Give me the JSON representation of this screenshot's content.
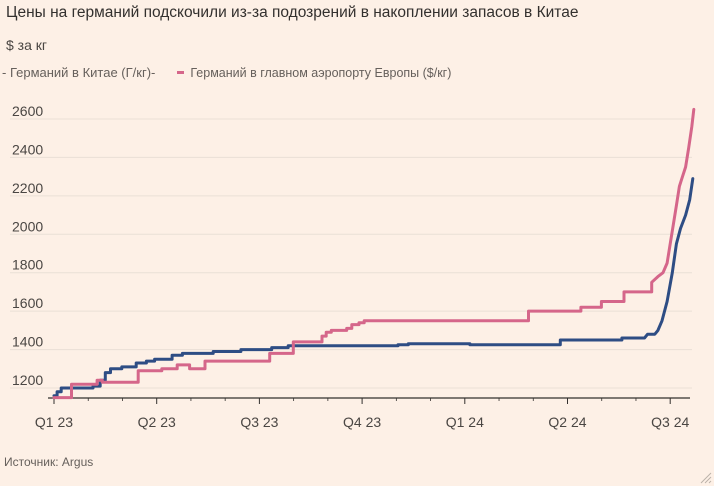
{
  "title": "Цены на германий подскочили из-за подозрений в накоплении запасов в Китае",
  "subtitle": "$ за кг",
  "legend": [
    {
      "label": "- Германий в Китае (Г/кг)-",
      "color": "#2e4d84"
    },
    {
      "label": "Германий в главном аэропорту Европы ($/кг)",
      "color": "#d5668a"
    }
  ],
  "source": "Источник: Argus",
  "colors": {
    "background": "#fdf0e6",
    "grid": "#eadfd6",
    "axis": "#33302e"
  },
  "chart_data": {
    "type": "line",
    "title": "Цены на германий подскочили из-за подозрений в накоплении запасов в Китае",
    "ylabel": "$ за кг",
    "xlabel": "",
    "ylim": [
      1150,
      2700
    ],
    "xlim": [
      0,
      6.3
    ],
    "yticks": [
      1200,
      1400,
      1600,
      1800,
      2000,
      2200,
      2400,
      2600
    ],
    "xticks": [
      {
        "label": "Q1 23",
        "x": 0
      },
      {
        "label": "Q2 23",
        "x": 1
      },
      {
        "label": "Q3 23",
        "x": 2
      },
      {
        "label": "Q4 23",
        "x": 3
      },
      {
        "label": "Q1 24",
        "x": 4
      },
      {
        "label": "Q2 24",
        "x": 5
      },
      {
        "label": "Q3 24",
        "x": 6
      }
    ],
    "series": [
      {
        "name": "- Германий в Китае (Г/кг)-",
        "color": "#2e4d84",
        "step": true,
        "points": [
          [
            0.0,
            1160
          ],
          [
            0.03,
            1180
          ],
          [
            0.07,
            1200
          ],
          [
            0.18,
            1200
          ],
          [
            0.38,
            1210
          ],
          [
            0.45,
            1240
          ],
          [
            0.5,
            1280
          ],
          [
            0.55,
            1300
          ],
          [
            0.66,
            1310
          ],
          [
            0.8,
            1330
          ],
          [
            0.9,
            1340
          ],
          [
            0.98,
            1350
          ],
          [
            1.15,
            1370
          ],
          [
            1.25,
            1380
          ],
          [
            1.5,
            1380
          ],
          [
            1.55,
            1390
          ],
          [
            1.8,
            1390
          ],
          [
            1.82,
            1400
          ],
          [
            2.1,
            1400
          ],
          [
            2.12,
            1410
          ],
          [
            2.25,
            1410
          ],
          [
            2.28,
            1420
          ],
          [
            3.1,
            1420
          ],
          [
            3.35,
            1425
          ],
          [
            3.45,
            1430
          ],
          [
            4.0,
            1430
          ],
          [
            4.05,
            1425
          ],
          [
            4.9,
            1425
          ],
          [
            4.93,
            1450
          ],
          [
            5.5,
            1450
          ],
          [
            5.53,
            1460
          ],
          [
            5.75,
            1460
          ],
          [
            5.78,
            1480
          ],
          [
            5.85,
            1480
          ],
          [
            5.88,
            1500
          ],
          [
            5.92,
            1550
          ],
          [
            5.97,
            1650
          ],
          [
            6.02,
            1800
          ],
          [
            6.06,
            1950
          ],
          [
            6.1,
            2030
          ],
          [
            6.15,
            2100
          ],
          [
            6.19,
            2180
          ],
          [
            6.22,
            2290
          ]
        ]
      },
      {
        "name": "Германий в главном аэропорту Европы ($/кг)",
        "color": "#d5668a",
        "step": true,
        "points": [
          [
            0.0,
            1150
          ],
          [
            0.05,
            1150
          ],
          [
            0.15,
            1150
          ],
          [
            0.17,
            1220
          ],
          [
            0.38,
            1220
          ],
          [
            0.42,
            1240
          ],
          [
            0.47,
            1230
          ],
          [
            0.8,
            1230
          ],
          [
            0.82,
            1290
          ],
          [
            1.02,
            1290
          ],
          [
            1.05,
            1300
          ],
          [
            1.18,
            1300
          ],
          [
            1.2,
            1320
          ],
          [
            1.3,
            1320
          ],
          [
            1.32,
            1300
          ],
          [
            1.45,
            1300
          ],
          [
            1.47,
            1340
          ],
          [
            2.07,
            1340
          ],
          [
            2.1,
            1380
          ],
          [
            2.3,
            1380
          ],
          [
            2.33,
            1440
          ],
          [
            2.58,
            1440
          ],
          [
            2.61,
            1470
          ],
          [
            2.65,
            1490
          ],
          [
            2.7,
            1500
          ],
          [
            2.85,
            1510
          ],
          [
            2.9,
            1530
          ],
          [
            2.97,
            1540
          ],
          [
            3.02,
            1550
          ],
          [
            4.6,
            1550
          ],
          [
            4.62,
            1600
          ],
          [
            5.1,
            1600
          ],
          [
            5.13,
            1620
          ],
          [
            5.3,
            1620
          ],
          [
            5.33,
            1650
          ],
          [
            5.5,
            1650
          ],
          [
            5.55,
            1700
          ],
          [
            5.78,
            1700
          ],
          [
            5.82,
            1750
          ],
          [
            5.88,
            1780
          ],
          [
            5.93,
            1800
          ],
          [
            5.97,
            1850
          ],
          [
            6.0,
            1950
          ],
          [
            6.03,
            2050
          ],
          [
            6.06,
            2150
          ],
          [
            6.09,
            2250
          ],
          [
            6.12,
            2300
          ],
          [
            6.15,
            2350
          ],
          [
            6.18,
            2450
          ],
          [
            6.21,
            2560
          ],
          [
            6.23,
            2650
          ]
        ]
      }
    ]
  }
}
